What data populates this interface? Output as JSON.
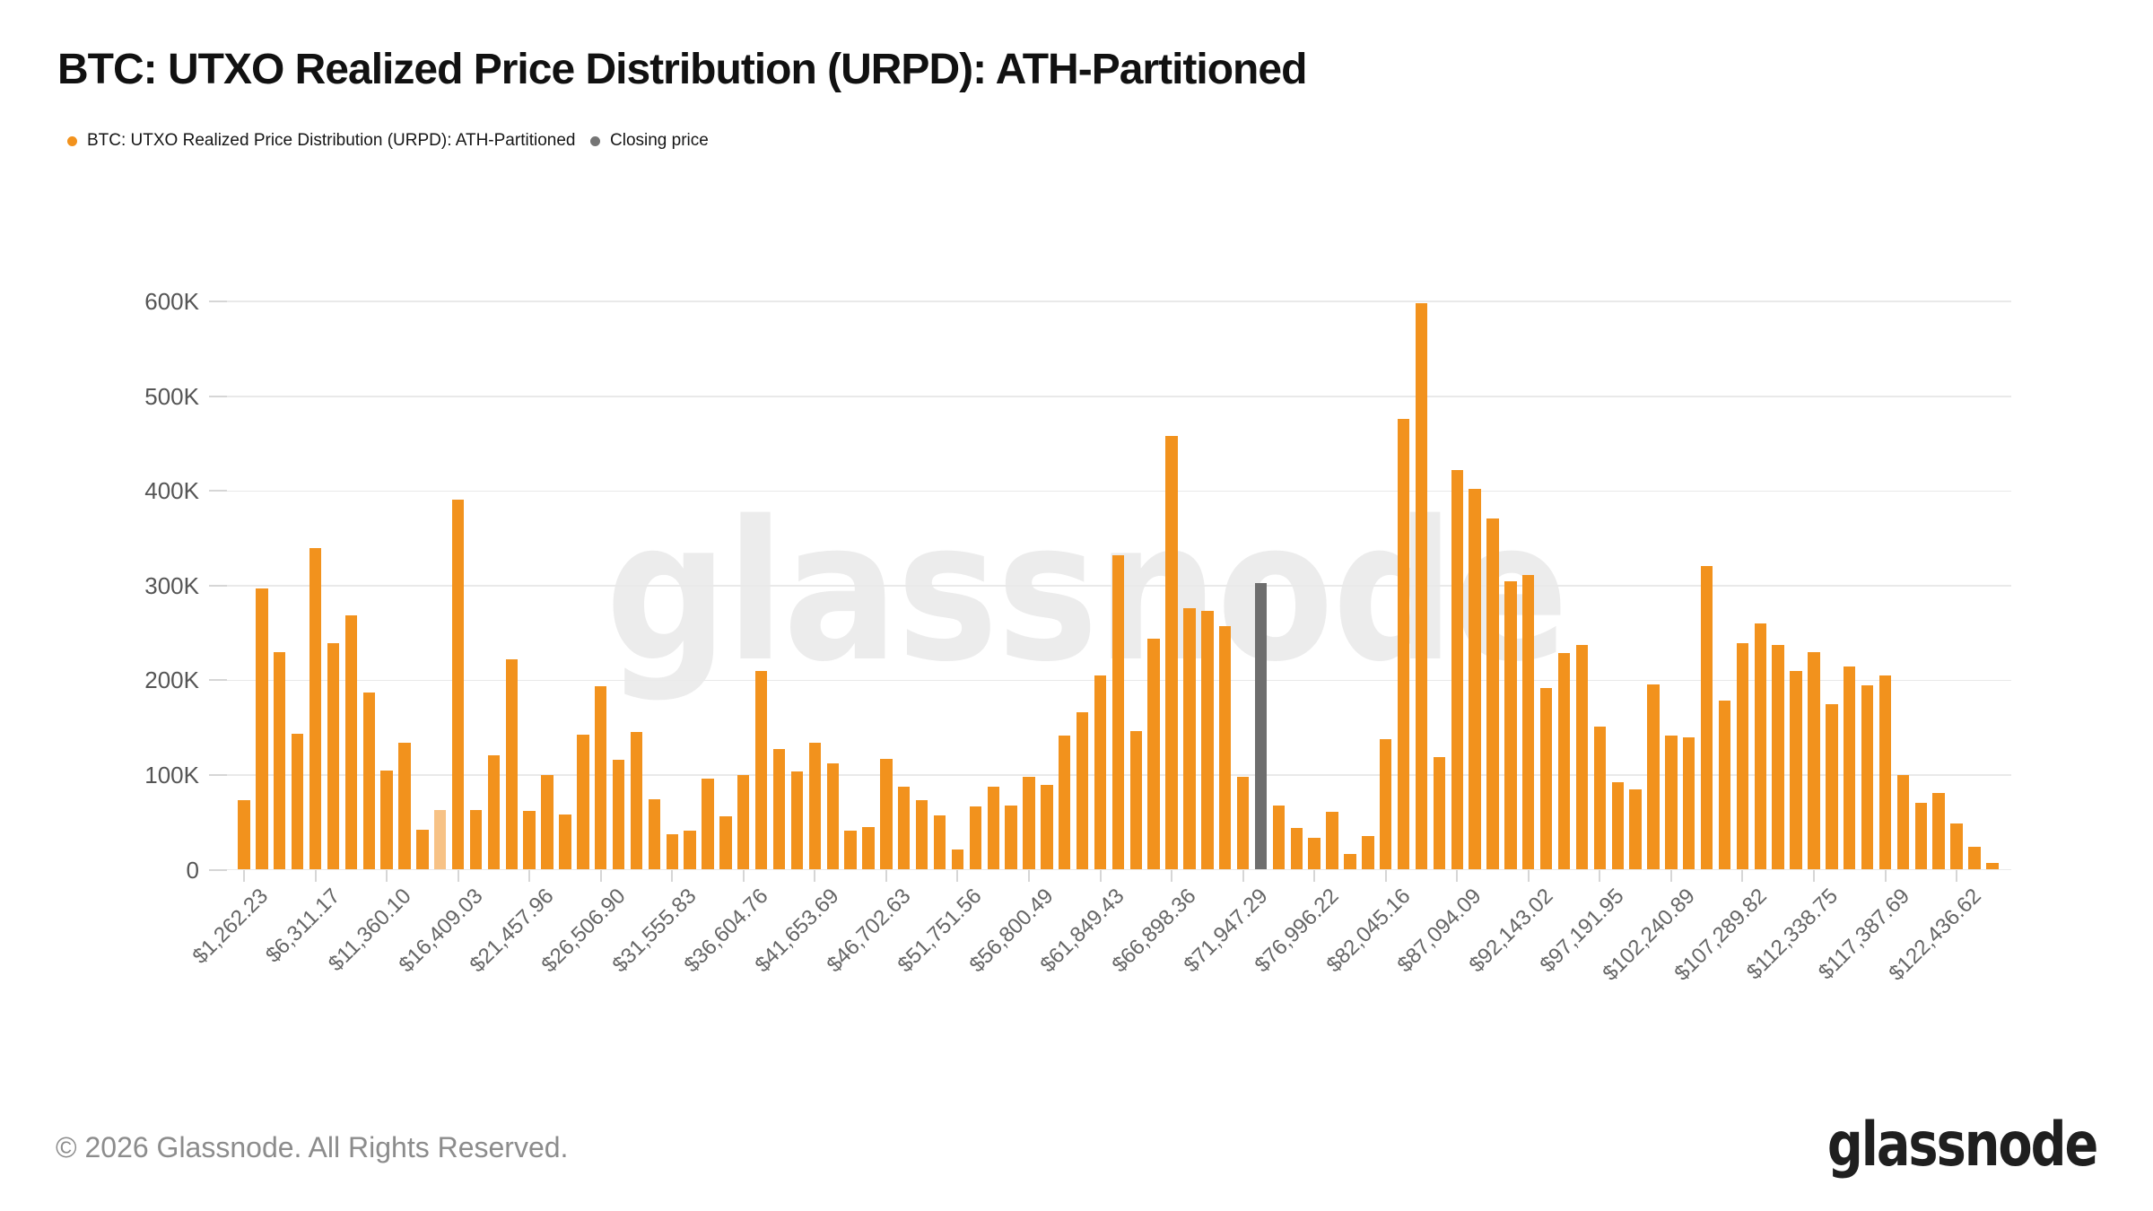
{
  "title": "BTC: UTXO Realized Price Distribution (URPD): ATH-Partitioned",
  "legend": {
    "series": {
      "label": "BTC: UTXO Realized Price Distribution (URPD): ATH-Partitioned",
      "color": "#F2921D"
    },
    "closing": {
      "label": "Closing price",
      "color": "#757575"
    }
  },
  "watermark": "glassnode",
  "footer": {
    "copyright": "© 2026 Glassnode. All Rights Reserved.",
    "brand": "glassnode"
  },
  "chart_data": {
    "type": "bar",
    "title": "BTC: UTXO Realized Price Distribution (URPD): ATH-Partitioned",
    "xlabel": "",
    "ylabel": "",
    "ylim": [
      0,
      620000
    ],
    "grid": "horizontal",
    "legend_position": "top-left",
    "ytick_labels": [
      "0",
      "100K",
      "200K",
      "300K",
      "400K",
      "500K",
      "600K"
    ],
    "xtick_labels": [
      "$1,262.23",
      "$6,311.17",
      "$11,360.10",
      "$16,409.03",
      "$21,457.96",
      "$26,506.90",
      "$31,555.83",
      "$36,604.76",
      "$41,653.69",
      "$46,702.63",
      "$51,751.56",
      "$56,800.49",
      "$61,849.43",
      "$66,898.36",
      "$71,947.29",
      "$76,996.22",
      "$82,045.16",
      "$87,094.09",
      "$92,143.02",
      "$97,191.95",
      "$102,240.89",
      "$107,289.82",
      "$112,338.75",
      "$117,387.69",
      "$122,436.62"
    ],
    "xticks_every_n_bars": 4,
    "bin_width_usd": 1262.23,
    "bar_color": "#F2921D",
    "highlighted_bar": {
      "index": 11,
      "color": "#F7C285"
    },
    "closing_price_bar": {
      "index": 57,
      "value": 303000,
      "color": "#6E6E6E"
    },
    "series": [
      {
        "name": "BTC: UTXO Realized Price Distribution (URPD): ATH-Partitioned",
        "values": [
          73000,
          297000,
          230000,
          144000,
          340000,
          239000,
          269000,
          187000,
          105000,
          134000,
          42000,
          63000,
          391000,
          63000,
          121000,
          222000,
          62000,
          100000,
          58000,
          143000,
          194000,
          116000,
          145000,
          74000,
          37000,
          41000,
          96000,
          56000,
          100000,
          210000,
          127000,
          104000,
          134000,
          112000,
          41000,
          45000,
          117000,
          88000,
          73000,
          57000,
          21000,
          67000,
          88000,
          68000,
          98000,
          90000,
          142000,
          166000,
          205000,
          332000,
          146000,
          244000,
          458000,
          276000,
          273000,
          257000,
          98000,
          303000,
          68000,
          44000,
          34000,
          61000,
          17000,
          36000,
          138000,
          476000,
          598000,
          119000,
          422000,
          402000,
          371000,
          305000,
          311000,
          192000,
          229000,
          237000,
          151000,
          92000,
          85000,
          196000,
          142000,
          140000,
          321000,
          179000,
          239000,
          260000,
          237000,
          210000,
          230000,
          175000,
          215000,
          195000,
          205000,
          100000,
          71000,
          81000,
          49000,
          24000,
          7000
        ]
      }
    ]
  }
}
